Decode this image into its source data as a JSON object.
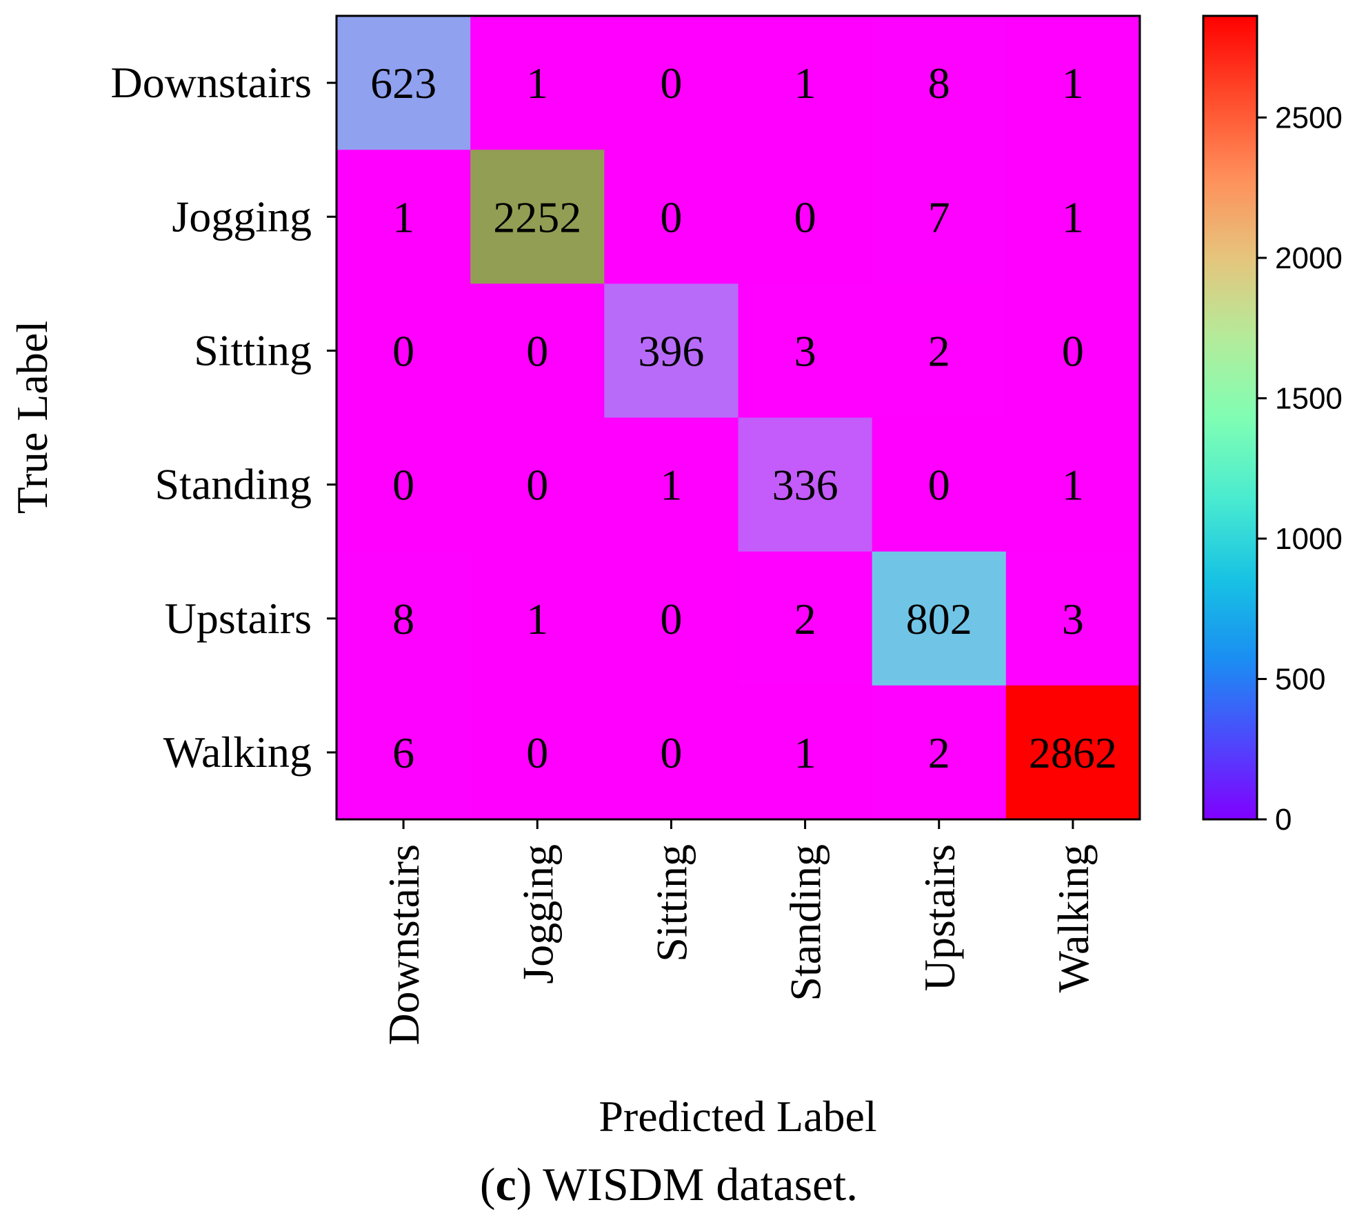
{
  "chart_data": {
    "type": "heatmap",
    "title": "",
    "xlabel": "Predicted Label",
    "ylabel": "True Label",
    "x_categories": [
      "Downstairs",
      "Jogging",
      "Sitting",
      "Standing",
      "Upstairs",
      "Walking"
    ],
    "y_categories": [
      "Downstairs",
      "Jogging",
      "Sitting",
      "Standing",
      "Upstairs",
      "Walking"
    ],
    "values": [
      [
        623,
        1,
        0,
        1,
        8,
        1
      ],
      [
        1,
        2252,
        0,
        0,
        7,
        1
      ],
      [
        0,
        0,
        396,
        3,
        2,
        0
      ],
      [
        0,
        0,
        1,
        336,
        0,
        1
      ],
      [
        8,
        1,
        0,
        2,
        802,
        3
      ],
      [
        6,
        0,
        0,
        1,
        2,
        2862
      ]
    ],
    "colormap": "rainbow",
    "colorbar": {
      "range": [
        0,
        2862
      ],
      "ticks": [
        0,
        500,
        1000,
        1500,
        2000,
        2500
      ]
    }
  },
  "caption": {
    "label": "c",
    "text": "WISDM dataset."
  }
}
